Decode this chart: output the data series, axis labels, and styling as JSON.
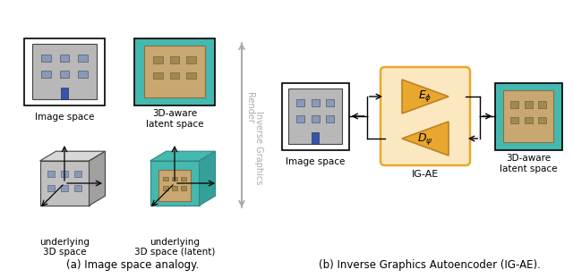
{
  "fig_width": 6.4,
  "fig_height": 3.11,
  "dpi": 100,
  "background_color": "#ffffff",
  "caption_a": "(a) Image space analogy.",
  "caption_b": "(b) Inverse Graphics Autoencoder (IG-AE).",
  "caption_fontsize": 8.5,
  "teal_color": "#45b8b0",
  "orange_box_color": "#e8a830",
  "orange_bg_color": "#fce8c0",
  "sandy_color": "#c8a870",
  "gray_building": "#b8b8b8",
  "label_image_space_a": "Image space",
  "label_3d_aware_latent": "3D-aware\nlatent space",
  "label_underlying_3d": "underlying\n3D space",
  "label_underlying_3d_latent": "underlying\n3D space (latent)",
  "label_render": "Render",
  "label_inverse_graphics": "Inverse Graphics",
  "label_image_space_b": "Image space",
  "label_3d_aware_latent_b": "3D-aware\nlatent space",
  "label_igae": "IG-AE",
  "label_E": "$E_\\phi$",
  "label_D": "$D_\\psi$"
}
